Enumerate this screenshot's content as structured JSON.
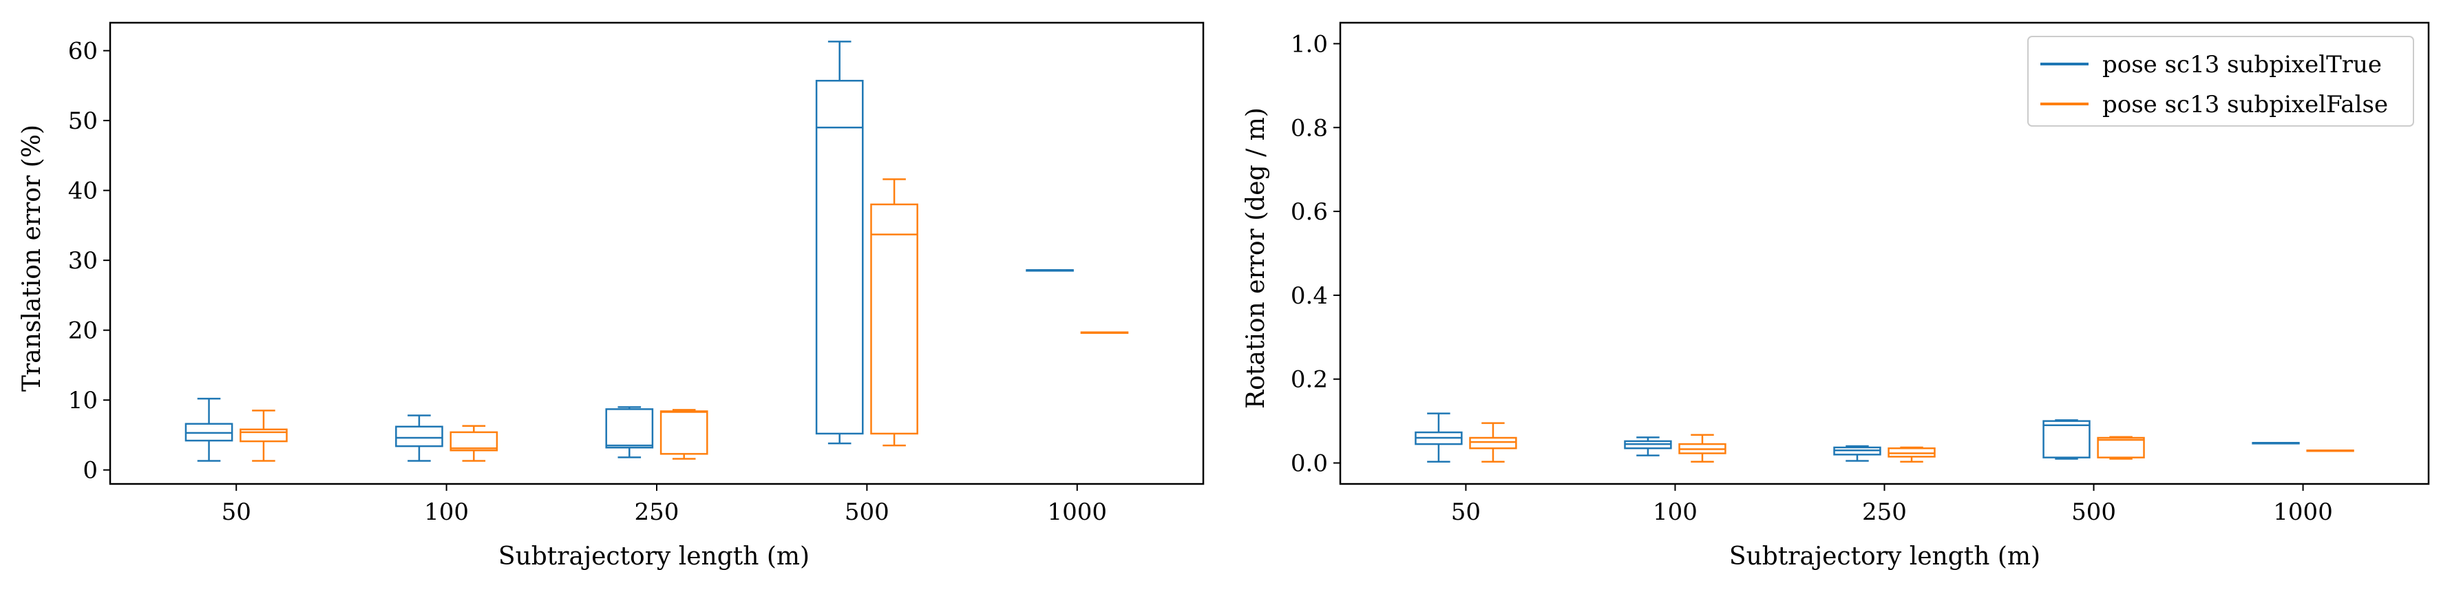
{
  "colors": {
    "series0": "#1f77b4",
    "series1": "#ff7f0e",
    "axis": "#000000"
  },
  "chart_data": [
    {
      "type": "box",
      "name": "translation",
      "title": "",
      "xlabel": "Subtrajectory length (m)",
      "ylabel": "Translation error (%)",
      "categories": [
        "50",
        "100",
        "250",
        "500",
        "1000"
      ],
      "ylim": [
        -2,
        64
      ],
      "yticks": [
        0,
        10,
        20,
        30,
        40,
        50,
        60
      ],
      "legend": null,
      "series": [
        {
          "name": "pose sc13 subpixelTrue",
          "boxes": [
            {
              "whislo": 1.3,
              "q1": 4.2,
              "med": 5.3,
              "q3": 6.6,
              "whishi": 10.2
            },
            {
              "whislo": 1.3,
              "q1": 3.4,
              "med": 4.6,
              "q3": 6.2,
              "whishi": 7.8
            },
            {
              "whislo": 1.8,
              "q1": 3.2,
              "med": 3.5,
              "q3": 8.7,
              "whishi": 9.0
            },
            {
              "whislo": 3.8,
              "q1": 5.2,
              "med": 49.0,
              "q3": 55.7,
              "whishi": 61.3
            },
            {
              "whislo": 28.6,
              "q1": 28.6,
              "med": 28.6,
              "q3": 28.6,
              "whishi": 28.6
            }
          ]
        },
        {
          "name": "pose sc13 subpixelFalse",
          "boxes": [
            {
              "whislo": 1.3,
              "q1": 4.1,
              "med": 5.4,
              "q3": 5.8,
              "whishi": 8.5
            },
            {
              "whislo": 1.3,
              "q1": 2.8,
              "med": 3.1,
              "q3": 5.4,
              "whishi": 6.3
            },
            {
              "whislo": 1.6,
              "q1": 2.3,
              "med": 8.3,
              "q3": 8.4,
              "whishi": 8.6
            },
            {
              "whislo": 3.5,
              "q1": 5.2,
              "med": 33.7,
              "q3": 38.0,
              "whishi": 41.6
            },
            {
              "whislo": 19.7,
              "q1": 19.7,
              "med": 19.7,
              "q3": 19.7,
              "whishi": 19.7
            }
          ]
        }
      ]
    },
    {
      "type": "box",
      "name": "rotation",
      "title": "",
      "xlabel": "Subtrajectory length (m)",
      "ylabel": "Rotation error (deg / m)",
      "categories": [
        "50",
        "100",
        "250",
        "500",
        "1000"
      ],
      "ylim": [
        -0.05,
        1.05
      ],
      "yticks": [
        "0.0",
        "0.2",
        "0.4",
        "0.6",
        "0.8",
        "1.0"
      ],
      "legend": {
        "location": "top-right",
        "entries": [
          "pose sc13 subpixelTrue",
          "pose sc13 subpixelFalse"
        ]
      },
      "series": [
        {
          "name": "pose sc13 subpixelTrue",
          "boxes": [
            {
              "whislo": 0.003,
              "q1": 0.045,
              "med": 0.06,
              "q3": 0.073,
              "whishi": 0.118
            },
            {
              "whislo": 0.018,
              "q1": 0.035,
              "med": 0.045,
              "q3": 0.052,
              "whishi": 0.061
            },
            {
              "whislo": 0.005,
              "q1": 0.02,
              "med": 0.03,
              "q3": 0.037,
              "whishi": 0.04
            },
            {
              "whislo": 0.01,
              "q1": 0.013,
              "med": 0.09,
              "q3": 0.1,
              "whishi": 0.102
            },
            {
              "whislo": 0.048,
              "q1": 0.048,
              "med": 0.048,
              "q3": 0.048,
              "whishi": 0.048
            }
          ]
        },
        {
          "name": "pose sc13 subpixelFalse",
          "boxes": [
            {
              "whislo": 0.003,
              "q1": 0.035,
              "med": 0.05,
              "q3": 0.06,
              "whishi": 0.095
            },
            {
              "whislo": 0.003,
              "q1": 0.023,
              "med": 0.033,
              "q3": 0.045,
              "whishi": 0.067
            },
            {
              "whislo": 0.003,
              "q1": 0.015,
              "med": 0.023,
              "q3": 0.035,
              "whishi": 0.037
            },
            {
              "whislo": 0.01,
              "q1": 0.013,
              "med": 0.055,
              "q3": 0.06,
              "whishi": 0.062
            },
            {
              "whislo": 0.03,
              "q1": 0.03,
              "med": 0.03,
              "q3": 0.03,
              "whishi": 0.03
            }
          ]
        }
      ]
    }
  ]
}
